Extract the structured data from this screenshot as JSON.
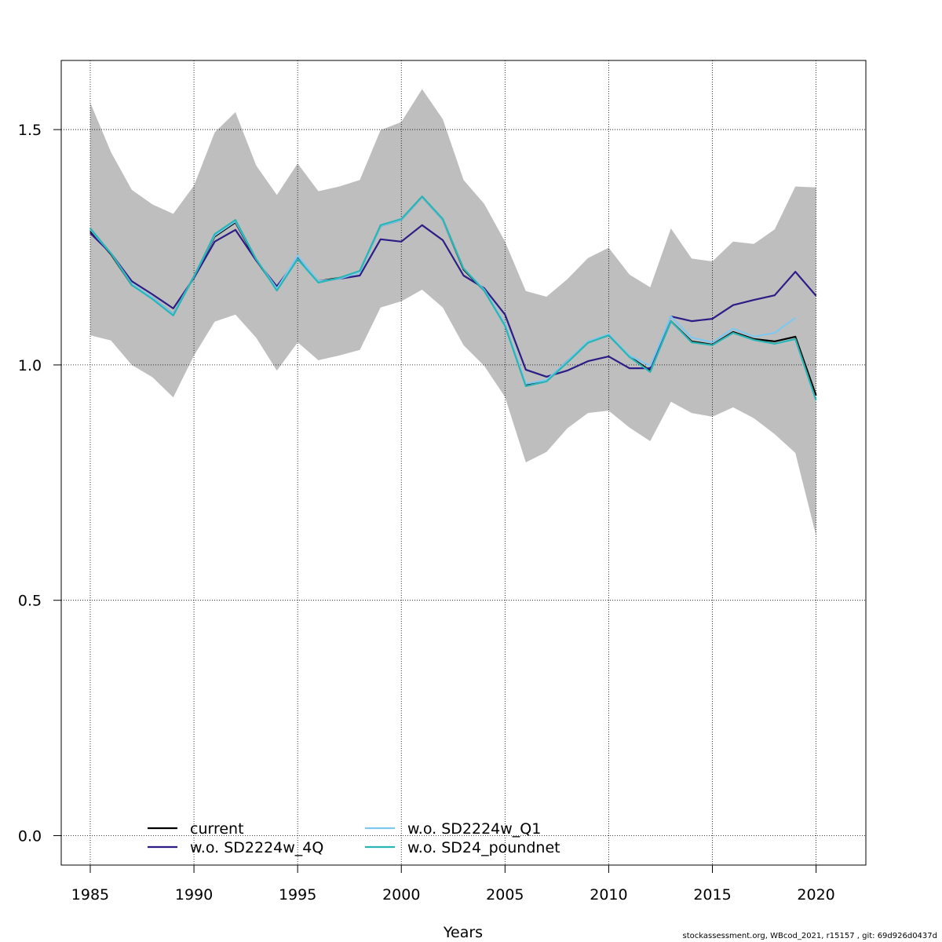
{
  "footnote": "stockassessment.org, WBcod_2021, r15157 , git: 69d926d0437d",
  "chart_data": {
    "type": "line",
    "title": "",
    "xlabel": "Years",
    "ylabel": "",
    "xlim": [
      1983.6,
      2022.4
    ],
    "ylim": [
      -0.0625,
      1.6469
    ],
    "xticks": [
      1985,
      1990,
      1995,
      2000,
      2005,
      2010,
      2015,
      2020
    ],
    "xtick_labels": [
      "1985",
      "1990",
      "1995",
      "2000",
      "2005",
      "2010",
      "2015",
      "2020"
    ],
    "yticks": [
      0.0,
      0.5,
      1.0,
      1.5
    ],
    "ytick_labels": [
      "0.0",
      "0.5",
      "1.0",
      "1.5"
    ],
    "grid": true,
    "legend_position": "bottom-left",
    "band_color": "#bebebe",
    "band": {
      "x": [
        1985,
        1986,
        1987,
        1988,
        1989,
        1990,
        1991,
        1992,
        1993,
        1994,
        1995,
        1996,
        1997,
        1998,
        1999,
        2000,
        2001,
        2002,
        2003,
        2004,
        2005,
        2006,
        2007,
        2008,
        2009,
        2010,
        2011,
        2012,
        2013,
        2014,
        2015,
        2016,
        2017,
        2018,
        2019,
        2020
      ],
      "upper": [
        1.557,
        1.452,
        1.372,
        1.341,
        1.321,
        1.381,
        1.494,
        1.537,
        1.424,
        1.361,
        1.428,
        1.369,
        1.379,
        1.393,
        1.499,
        1.516,
        1.586,
        1.522,
        1.393,
        1.342,
        1.262,
        1.157,
        1.145,
        1.182,
        1.227,
        1.249,
        1.192,
        1.165,
        1.29,
        1.226,
        1.22,
        1.262,
        1.257,
        1.288,
        1.379,
        1.377
      ],
      "lower": [
        1.063,
        1.052,
        1.0,
        0.974,
        0.931,
        1.02,
        1.092,
        1.107,
        1.058,
        0.988,
        1.048,
        1.01,
        1.02,
        1.032,
        1.122,
        1.135,
        1.16,
        1.122,
        1.042,
        0.998,
        0.932,
        0.793,
        0.815,
        0.865,
        0.898,
        0.903,
        0.867,
        0.838,
        0.922,
        0.898,
        0.89,
        0.91,
        0.887,
        0.853,
        0.813,
        0.637
      ]
    },
    "series": [
      {
        "name": "current",
        "color": "#000000",
        "dash": "solid",
        "x": [
          1985,
          1986,
          1987,
          1988,
          1989,
          1990,
          1991,
          1992,
          1993,
          1994,
          1995,
          1996,
          1997,
          1998,
          1999,
          2000,
          2001,
          2002,
          2003,
          2004,
          2005,
          2006,
          2007,
          2008,
          2009,
          2010,
          2011,
          2012,
          2013,
          2014,
          2015,
          2016,
          2017,
          2018,
          2019,
          2020
        ],
        "y": [
          1.285,
          1.235,
          1.17,
          1.143,
          1.108,
          1.188,
          1.273,
          1.303,
          1.223,
          1.16,
          1.228,
          1.178,
          1.185,
          1.198,
          1.295,
          1.308,
          1.357,
          1.308,
          1.203,
          1.158,
          1.085,
          0.958,
          0.967,
          1.008,
          1.048,
          1.063,
          1.018,
          0.988,
          1.093,
          1.05,
          1.043,
          1.07,
          1.055,
          1.05,
          1.06,
          0.935
        ]
      },
      {
        "name": "w.o. SD2224w_4Q",
        "color": "#2b1d85",
        "dash": "solid",
        "x": [
          1985,
          1986,
          1987,
          1988,
          1989,
          1990,
          1991,
          1992,
          1993,
          1994,
          1995,
          1996,
          1997,
          1998,
          1999,
          2000,
          2001,
          2002,
          2003,
          2004,
          2005,
          2006,
          2007,
          2008,
          2009,
          2010,
          2011,
          2012,
          2013,
          2014,
          2015,
          2016,
          2017,
          2018,
          2019,
          2020
        ],
        "y": [
          1.28,
          1.237,
          1.178,
          1.15,
          1.12,
          1.185,
          1.262,
          1.287,
          1.222,
          1.167,
          1.226,
          1.178,
          1.183,
          1.19,
          1.267,
          1.262,
          1.297,
          1.265,
          1.19,
          1.163,
          1.107,
          0.99,
          0.975,
          0.988,
          1.008,
          1.018,
          0.993,
          0.993,
          1.103,
          1.093,
          1.098,
          1.127,
          1.138,
          1.148,
          1.198,
          1.147
        ]
      },
      {
        "name": "w.o. SD2224w_Q1",
        "color": "#7ec8f0",
        "dash": "dotted",
        "x": [
          1985,
          1986,
          1987,
          1988,
          1989,
          1990,
          1991,
          1992,
          1993,
          1994,
          1995,
          1996,
          1997,
          1998,
          1999,
          2000,
          2001,
          2002,
          2003,
          2004,
          2005,
          2006,
          2007,
          2008,
          2009,
          2010,
          2011,
          2012,
          2013,
          2014,
          2015,
          2016,
          2017,
          2018,
          2019
        ],
        "y": [
          1.288,
          1.237,
          1.172,
          1.143,
          1.108,
          1.188,
          1.275,
          1.305,
          1.225,
          1.162,
          1.232,
          1.178,
          1.183,
          1.197,
          1.295,
          1.308,
          1.357,
          1.308,
          1.205,
          1.16,
          1.087,
          0.96,
          0.968,
          1.008,
          1.05,
          1.065,
          1.02,
          0.998,
          1.103,
          1.058,
          1.048,
          1.077,
          1.06,
          1.068,
          1.1
        ]
      },
      {
        "name": "w.o. SD24_poundnet",
        "color": "#2ab5b5",
        "dash": "dotted",
        "x": [
          1985,
          1986,
          1987,
          1988,
          1989,
          1990,
          1991,
          1992,
          1993,
          1994,
          1995,
          1996,
          1997,
          1998,
          1999,
          2000,
          2001,
          2002,
          2003,
          2004,
          2005,
          2006,
          2007,
          2008,
          2009,
          2010,
          2011,
          2012,
          2013,
          2014,
          2015,
          2016,
          2017,
          2018,
          2019,
          2020
        ],
        "y": [
          1.29,
          1.237,
          1.17,
          1.14,
          1.105,
          1.188,
          1.278,
          1.308,
          1.225,
          1.158,
          1.225,
          1.175,
          1.185,
          1.2,
          1.297,
          1.31,
          1.358,
          1.31,
          1.205,
          1.158,
          1.083,
          0.955,
          0.965,
          1.005,
          1.047,
          1.063,
          1.017,
          0.985,
          1.093,
          1.048,
          1.042,
          1.068,
          1.053,
          1.045,
          1.055,
          0.925
        ]
      }
    ]
  }
}
